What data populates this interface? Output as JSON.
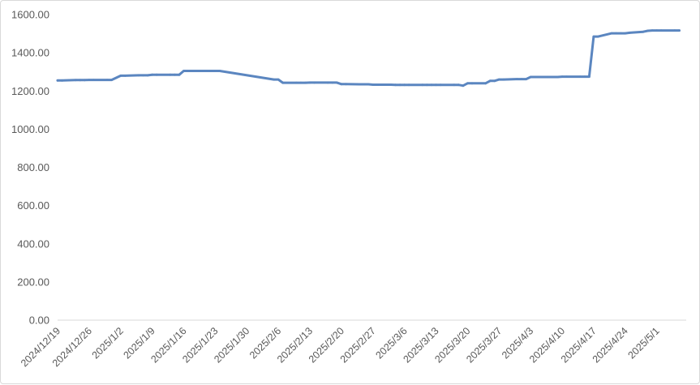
{
  "chart_data": {
    "type": "line",
    "title": "",
    "xlabel": "",
    "ylabel": "",
    "ylim": [
      0,
      1600
    ],
    "y_ticks": [
      "0.00",
      "200.00",
      "400.00",
      "600.00",
      "800.00",
      "1000.00",
      "1200.00",
      "1400.00",
      "1600.00"
    ],
    "x_tick_labels": [
      "2024/12/19",
      "2024/12/26",
      "2025/1/2",
      "2025/1/9",
      "2025/1/16",
      "2025/1/23",
      "2025/1/30",
      "2025/2/6",
      "2025/2/13",
      "2025/2/20",
      "2025/2/27",
      "2025/3/6",
      "2025/3/13",
      "2025/3/20",
      "2025/3/27",
      "2025/4/3",
      "2025/4/10",
      "2025/4/17",
      "2025/4/24",
      "2025/5/1"
    ],
    "grid": false,
    "legend": "none",
    "line_color": "#5b86c0",
    "series": [
      {
        "x": [
          "2024/12/19",
          "2024/12/20",
          "2024/12/23",
          "2024/12/24",
          "2024/12/25",
          "2024/12/26",
          "2024/12/27",
          "2024/12/30",
          "2024/12/31",
          "2025/1/2",
          "2025/1/3",
          "2025/1/6",
          "2025/1/7",
          "2025/1/8",
          "2025/1/9",
          "2025/1/10",
          "2025/1/13",
          "2025/1/14",
          "2025/1/15",
          "2025/1/16",
          "2025/1/17",
          "2025/1/20",
          "2025/1/21",
          "2025/1/22",
          "2025/1/23",
          "2025/1/24",
          "2025/2/5",
          "2025/2/6",
          "2025/2/7",
          "2025/2/10",
          "2025/2/11",
          "2025/2/12",
          "2025/2/13",
          "2025/2/14",
          "2025/2/17",
          "2025/2/18",
          "2025/2/19",
          "2025/2/20",
          "2025/2/21",
          "2025/2/24",
          "2025/2/25",
          "2025/2/26",
          "2025/2/27",
          "2025/2/28",
          "2025/3/3",
          "2025/3/4",
          "2025/3/5",
          "2025/3/6",
          "2025/3/7",
          "2025/3/10",
          "2025/3/11",
          "2025/3/12",
          "2025/3/13",
          "2025/3/14",
          "2025/3/17",
          "2025/3/18",
          "2025/3/19",
          "2025/3/20",
          "2025/3/21",
          "2025/3/24",
          "2025/3/25",
          "2025/3/26",
          "2025/3/27",
          "2025/3/28",
          "2025/3/31",
          "2025/4/1",
          "2025/4/2",
          "2025/4/3",
          "2025/4/4",
          "2025/4/7",
          "2025/4/8",
          "2025/4/9",
          "2025/4/10",
          "2025/4/11",
          "2025/4/14",
          "2025/4/15",
          "2025/4/16",
          "2025/4/17",
          "2025/4/18",
          "2025/4/21",
          "2025/4/22",
          "2025/4/23",
          "2025/4/24",
          "2025/4/25",
          "2025/4/28",
          "2025/4/29",
          "2025/4/30",
          "2025/5/1",
          "2025/5/2",
          "2025/5/5",
          "2025/5/6"
        ],
        "values": [
          1255,
          1255,
          1257,
          1257,
          1257,
          1258,
          1258,
          1258,
          1258,
          1280,
          1280,
          1282,
          1282,
          1282,
          1285,
          1285,
          1285,
          1285,
          1285,
          1305,
          1305,
          1305,
          1305,
          1305,
          1305,
          1305,
          1260,
          1260,
          1243,
          1243,
          1243,
          1243,
          1244,
          1244,
          1244,
          1244,
          1244,
          1236,
          1236,
          1235,
          1235,
          1235,
          1233,
          1233,
          1233,
          1232,
          1232,
          1232,
          1232,
          1232,
          1232,
          1232,
          1232,
          1232,
          1232,
          1232,
          1228,
          1240,
          1240,
          1240,
          1253,
          1253,
          1260,
          1260,
          1262,
          1262,
          1262,
          1273,
          1273,
          1273,
          1273,
          1273,
          1275,
          1275,
          1275,
          1275,
          1275,
          1485,
          1485,
          1502,
          1502,
          1502,
          1502,
          1505,
          1510,
          1515,
          1517,
          1517,
          1517,
          1517,
          1517
        ]
      }
    ]
  }
}
